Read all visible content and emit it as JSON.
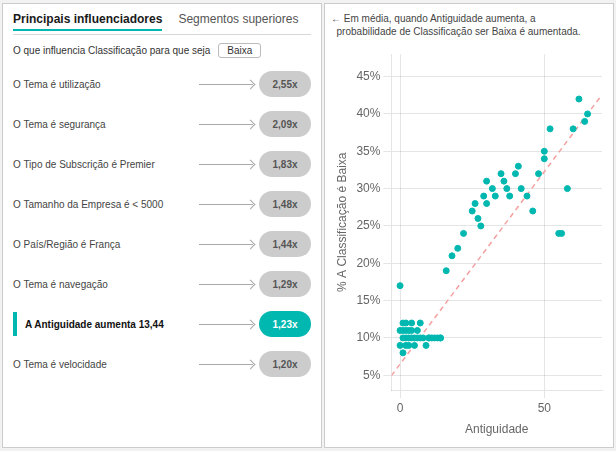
{
  "chart_data": [
    {
      "type": "list",
      "title": "Principais influenciadores",
      "subtitle": "O que influencia Classificação para que seja",
      "annotations": [
        "Segmentos superiores",
        "Baixa"
      ],
      "categories": [
        "O Tema é utilização",
        "O Tema é segurança",
        "O Tipo de Subscrição é Premier",
        "O Tamanho da Empresa é < 5000",
        "O País/Região é França",
        "O Tema é navegação",
        "A Antiguidade aumenta 13,44",
        "O Tema é velocidade"
      ],
      "values": [
        2.55,
        2.09,
        1.83,
        1.48,
        1.44,
        1.29,
        1.23,
        1.2
      ],
      "value_labels": [
        "2,55x",
        "2,09x",
        "1,83x",
        "1,48x",
        "1,44x",
        "1,29x",
        "1,23x",
        "1,20x"
      ],
      "colors": [
        "#CCCCCC",
        "#CCCCCC",
        "#CCCCCC",
        "#CCCCCC",
        "#CCCCCC",
        "#CCCCCC",
        "#00B8B0",
        "#CCCCCC"
      ],
      "data_labels": true
    },
    {
      "type": "scatter",
      "annotations": [
        "← Em média, quando Antiguidade aumenta, a",
        "  probabilidade de Classificação ser Baixa é aumentada."
      ],
      "xlabel": "Antiguidade",
      "ylabel": "% A Classificação é Baixa",
      "series": [
        {
          "type": "scatter",
          "color": "#00B8B0",
          "marker": "circle",
          "x": [
            0,
            0,
            0,
            1,
            1,
            1,
            1,
            2,
            2,
            2,
            2,
            3,
            3,
            3,
            4,
            4,
            4,
            5,
            5,
            6,
            6,
            7,
            7,
            8,
            9,
            10,
            10,
            11,
            12,
            13,
            14,
            14,
            16,
            18,
            20,
            22,
            25,
            26,
            27,
            28,
            29,
            30,
            30,
            32,
            33,
            35,
            36,
            37,
            38,
            40,
            41,
            42,
            44,
            46,
            48,
            50,
            50,
            52,
            55,
            56,
            58,
            60,
            62,
            64,
            65
          ],
          "values": [
            0.17,
            0.11,
            0.09,
            0.1,
            0.11,
            0.12,
            0.08,
            0.1,
            0.11,
            0.09,
            0.12,
            0.1,
            0.11,
            0.09,
            0.1,
            0.12,
            0.11,
            0.1,
            0.09,
            0.11,
            0.1,
            0.12,
            0.1,
            0.1,
            0.09,
            0.1,
            0.1,
            0.1,
            0.1,
            0.1,
            0.1,
            0.1,
            0.19,
            0.21,
            0.22,
            0.24,
            0.27,
            0.28,
            0.26,
            0.25,
            0.29,
            0.31,
            0.28,
            0.3,
            0.29,
            0.32,
            0.31,
            0.3,
            0.29,
            0.32,
            0.33,
            0.3,
            0.29,
            0.27,
            0.32,
            0.35,
            0.34,
            0.38,
            0.24,
            0.24,
            0.3,
            0.38,
            0.42,
            0.39,
            0.4
          ]
        },
        {
          "type": "line",
          "color": "#F4A0A0",
          "line_style": "dashed",
          "x": [
            -3,
            70
          ],
          "values": [
            0.0495384615,
            0.425769231
          ]
        }
      ],
      "xlim": [
        -3,
        70
      ],
      "ylim": [
        0.03,
        0.48
      ],
      "xticks": [
        0,
        50
      ],
      "yticks": [
        {
          "value": 0.05,
          "label": "5%"
        },
        {
          "value": 0.1,
          "label": "10%"
        },
        {
          "value": 0.15,
          "label": "15%"
        },
        {
          "value": 0.2,
          "label": "20%"
        },
        {
          "value": 0.25,
          "label": "25%"
        },
        {
          "value": 0.3,
          "label": "30%"
        },
        {
          "value": 0.35,
          "label": "35%"
        },
        {
          "value": 0.4,
          "label": "40%"
        },
        {
          "value": 0.45,
          "label": "45%"
        }
      ],
      "grid": true
    }
  ]
}
